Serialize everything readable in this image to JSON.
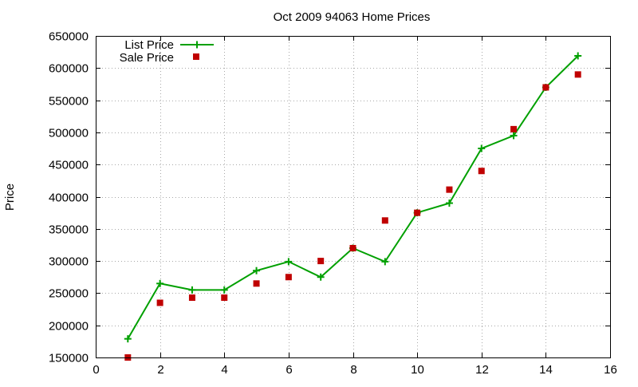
{
  "chart_data": {
    "type": "line",
    "title": "Oct 2009 94063 Home Prices",
    "xlabel": "",
    "ylabel": "Price",
    "xlim": [
      0,
      16
    ],
    "ylim": [
      150000,
      650000
    ],
    "x_ticks": [
      "0",
      "2",
      "4",
      "6",
      "8",
      "10",
      "12",
      "14",
      "16"
    ],
    "y_ticks": [
      "150000",
      "200000",
      "250000",
      "300000",
      "350000",
      "400000",
      "450000",
      "500000",
      "550000",
      "600000",
      "650000"
    ],
    "grid": true,
    "legend_position": "top-left",
    "series": [
      {
        "name": "List Price",
        "style": "line-with-plus-markers",
        "color": "#00a000",
        "x": [
          1,
          2,
          3,
          4,
          5,
          6,
          7,
          8,
          9,
          10,
          11,
          12,
          13,
          14,
          15
        ],
        "values": [
          179000,
          265000,
          255000,
          255000,
          285000,
          299000,
          275000,
          320000,
          299000,
          375000,
          390000,
          475000,
          495000,
          570000,
          619000
        ]
      },
      {
        "name": "Sale Price",
        "style": "square-markers",
        "color": "#c00000",
        "x": [
          1,
          2,
          3,
          4,
          5,
          6,
          7,
          8,
          9,
          10,
          11,
          12,
          13,
          14,
          15
        ],
        "values": [
          150000,
          235000,
          243000,
          243000,
          265000,
          275000,
          300000,
          320000,
          363000,
          375000,
          411000,
          440000,
          505000,
          570000,
          590000
        ]
      }
    ]
  }
}
